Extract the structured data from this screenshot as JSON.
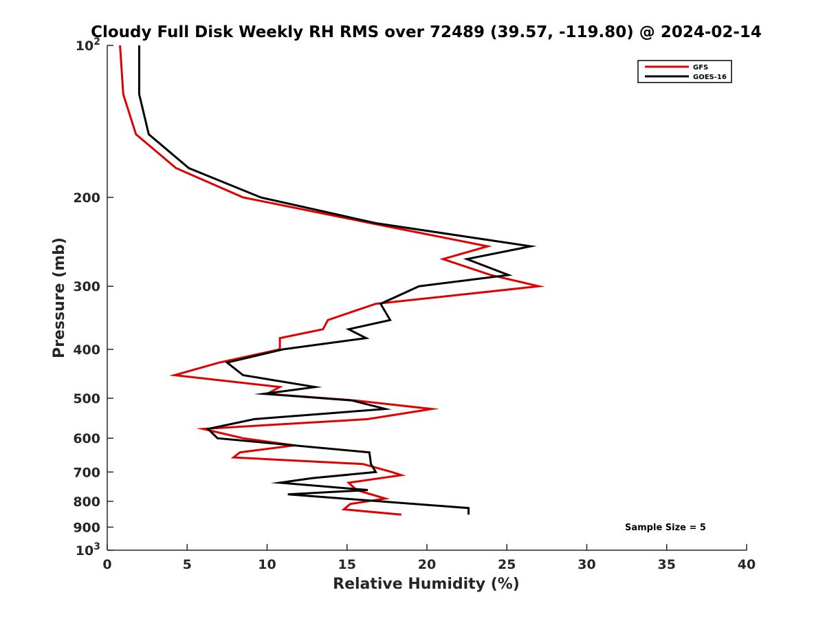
{
  "chart_data": {
    "type": "line",
    "title": "Cloudy Full Disk Weekly RH RMS over 72489 (39.57, -119.80) @ 2024-02-14",
    "xlabel": "Relative Humidity (%)",
    "ylabel": "Pressure (mb)",
    "xlim": [
      0,
      40
    ],
    "ylim": [
      100,
      1000
    ],
    "yscale": "log",
    "y_reversed": true,
    "grid": false,
    "legend_position": "top-right",
    "x_ticks": [
      "0",
      "5",
      "10",
      "15",
      "20",
      "25",
      "30",
      "35",
      "40"
    ],
    "y_ticks": [
      {
        "value": 100,
        "label": "10",
        "sup": "2"
      },
      {
        "value": 200,
        "label": "200",
        "sup": ""
      },
      {
        "value": 300,
        "label": "300",
        "sup": ""
      },
      {
        "value": 400,
        "label": "400",
        "sup": ""
      },
      {
        "value": 500,
        "label": "500",
        "sup": ""
      },
      {
        "value": 600,
        "label": "600",
        "sup": ""
      },
      {
        "value": 700,
        "label": "700",
        "sup": ""
      },
      {
        "value": 800,
        "label": "800",
        "sup": ""
      },
      {
        "value": 900,
        "label": "900",
        "sup": ""
      },
      {
        "value": 1000,
        "label": "10",
        "sup": "3"
      }
    ],
    "series": [
      {
        "name": "GFS",
        "color": "#e00000",
        "points": [
          {
            "x": 0.8,
            "y": 100
          },
          {
            "x": 1.0,
            "y": 125
          },
          {
            "x": 1.8,
            "y": 150
          },
          {
            "x": 4.3,
            "y": 175
          },
          {
            "x": 8.5,
            "y": 200
          },
          {
            "x": 16.5,
            "y": 225
          },
          {
            "x": 23.8,
            "y": 250
          },
          {
            "x": 21.0,
            "y": 265
          },
          {
            "x": 24.0,
            "y": 285
          },
          {
            "x": 27.0,
            "y": 300
          },
          {
            "x": 16.8,
            "y": 325
          },
          {
            "x": 13.8,
            "y": 350
          },
          {
            "x": 13.5,
            "y": 365
          },
          {
            "x": 10.8,
            "y": 380
          },
          {
            "x": 10.8,
            "y": 400
          },
          {
            "x": 7.0,
            "y": 425
          },
          {
            "x": 4.2,
            "y": 450
          },
          {
            "x": 10.8,
            "y": 475
          },
          {
            "x": 10.0,
            "y": 490
          },
          {
            "x": 15.5,
            "y": 505
          },
          {
            "x": 20.3,
            "y": 525
          },
          {
            "x": 16.3,
            "y": 550
          },
          {
            "x": 6.0,
            "y": 575
          },
          {
            "x": 8.5,
            "y": 600
          },
          {
            "x": 11.7,
            "y": 620
          },
          {
            "x": 8.3,
            "y": 640
          },
          {
            "x": 7.9,
            "y": 655
          },
          {
            "x": 16.0,
            "y": 675
          },
          {
            "x": 17.8,
            "y": 700
          },
          {
            "x": 18.4,
            "y": 710
          },
          {
            "x": 15.1,
            "y": 735
          },
          {
            "x": 15.6,
            "y": 760
          },
          {
            "x": 17.4,
            "y": 790
          },
          {
            "x": 15.2,
            "y": 810
          },
          {
            "x": 14.8,
            "y": 830
          },
          {
            "x": 18.4,
            "y": 850
          }
        ]
      },
      {
        "name": "GOES-16",
        "color": "#000000",
        "points": [
          {
            "x": 2.0,
            "y": 100
          },
          {
            "x": 2.0,
            "y": 125
          },
          {
            "x": 2.6,
            "y": 150
          },
          {
            "x": 5.1,
            "y": 175
          },
          {
            "x": 9.6,
            "y": 200
          },
          {
            "x": 16.8,
            "y": 225
          },
          {
            "x": 26.5,
            "y": 250
          },
          {
            "x": 22.5,
            "y": 265
          },
          {
            "x": 25.1,
            "y": 285
          },
          {
            "x": 19.5,
            "y": 300
          },
          {
            "x": 17.1,
            "y": 325
          },
          {
            "x": 17.7,
            "y": 350
          },
          {
            "x": 15.1,
            "y": 365
          },
          {
            "x": 16.2,
            "y": 380
          },
          {
            "x": 11.0,
            "y": 400
          },
          {
            "x": 7.5,
            "y": 425
          },
          {
            "x": 8.5,
            "y": 450
          },
          {
            "x": 13.0,
            "y": 475
          },
          {
            "x": 9.8,
            "y": 490
          },
          {
            "x": 15.3,
            "y": 505
          },
          {
            "x": 17.4,
            "y": 525
          },
          {
            "x": 9.2,
            "y": 550
          },
          {
            "x": 6.3,
            "y": 575
          },
          {
            "x": 6.9,
            "y": 600
          },
          {
            "x": 16.4,
            "y": 640
          },
          {
            "x": 16.5,
            "y": 675
          },
          {
            "x": 16.8,
            "y": 700
          },
          {
            "x": 12.8,
            "y": 720
          },
          {
            "x": 10.8,
            "y": 735
          },
          {
            "x": 16.3,
            "y": 760
          },
          {
            "x": 11.3,
            "y": 775
          },
          {
            "x": 22.6,
            "y": 825
          },
          {
            "x": 22.6,
            "y": 850
          }
        ]
      }
    ],
    "annotations": [
      {
        "text": "Sample Size = 5"
      }
    ]
  }
}
